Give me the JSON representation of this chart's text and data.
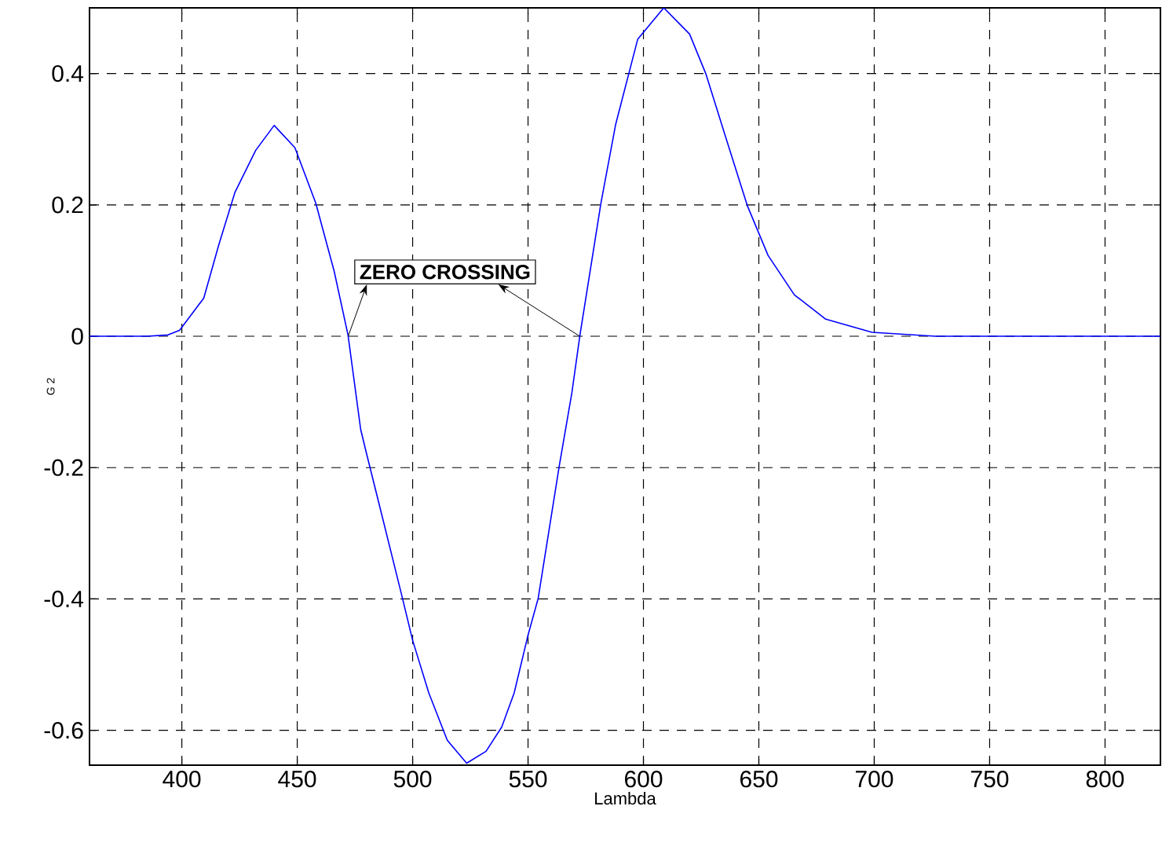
{
  "chart_data": {
    "type": "line",
    "xlabel": "Lambda",
    "ylabel": "G 2",
    "xlim": [
      360,
      824
    ],
    "ylim": [
      -0.653,
      0.5
    ],
    "xticks": [
      400,
      450,
      500,
      550,
      600,
      650,
      700,
      750,
      800
    ],
    "yticks": [
      -0.6,
      -0.4,
      -0.2,
      0,
      0.2,
      0.4
    ],
    "grid": true,
    "marker": "none",
    "line_style": "solid",
    "color": "#0000ff",
    "annotations": [
      {
        "text": "ZERO CROSSING",
        "x": 472,
        "y": 0
      }
    ],
    "x": [
      360,
      385,
      394,
      399,
      409.5,
      416,
      423,
      432,
      440,
      449,
      458,
      466,
      472,
      477.5,
      479.7,
      486.5,
      495.6,
      500,
      507,
      515,
      523.4,
      531.8,
      538.6,
      544,
      550,
      554.4,
      563.5,
      569,
      572.5,
      581.6,
      588,
      597.5,
      608.8,
      620,
      627,
      636,
      645,
      654,
      665.4,
      679,
      699,
      726.5,
      824
    ],
    "values": [
      0,
      0,
      0.002,
      0.009,
      0.058,
      0.139,
      0.219,
      0.283,
      0.321,
      0.287,
      0.203,
      0.099,
      0.002,
      -0.142,
      -0.174,
      -0.27,
      -0.399,
      -0.463,
      -0.543,
      -0.615,
      -0.65,
      -0.632,
      -0.595,
      -0.543,
      -0.455,
      -0.399,
      -0.198,
      -0.086,
      0.002,
      0.203,
      0.323,
      0.452,
      0.5,
      0.46,
      0.4,
      0.299,
      0.199,
      0.123,
      0.063,
      0.026,
      0.006,
      0,
      0
    ]
  }
}
